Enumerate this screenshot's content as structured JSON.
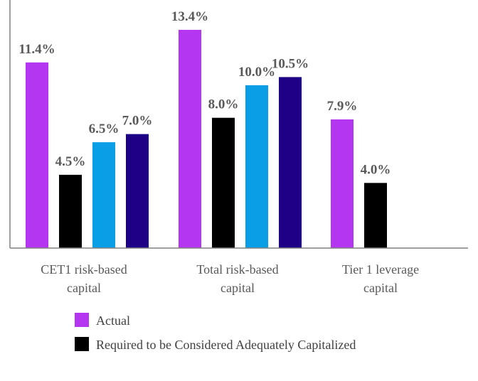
{
  "chart_data": {
    "type": "bar",
    "categories": [
      [
        "CET1 risk-based",
        "capital"
      ],
      [
        "Total risk-based",
        "capital"
      ],
      [
        "Tier 1 leverage",
        "capital"
      ]
    ],
    "series": [
      {
        "name": "Actual",
        "color": "#b536f0",
        "values": [
          11.4,
          13.4,
          7.9
        ]
      },
      {
        "name": "Required to be Considered Adequately Capitalized",
        "color": "#000000",
        "values": [
          4.5,
          8.0,
          4.0
        ]
      },
      {
        "color": "#0a9ee6",
        "values": [
          6.5,
          10.0,
          null
        ]
      },
      {
        "color": "#1e0087",
        "values": [
          7.0,
          10.5,
          null
        ]
      }
    ],
    "data_labels": [
      [
        "11.4%",
        "13.4%",
        "7.9%"
      ],
      [
        "4.5%",
        "8.0%",
        "4.0%"
      ],
      [
        "6.5%",
        "10.0%",
        null
      ],
      [
        "7.0%",
        "10.5%",
        null
      ]
    ],
    "ylim": [
      0,
      13.4
    ],
    "grid": false,
    "legend_placement": "bottom-left",
    "axis_color": "#808080"
  }
}
